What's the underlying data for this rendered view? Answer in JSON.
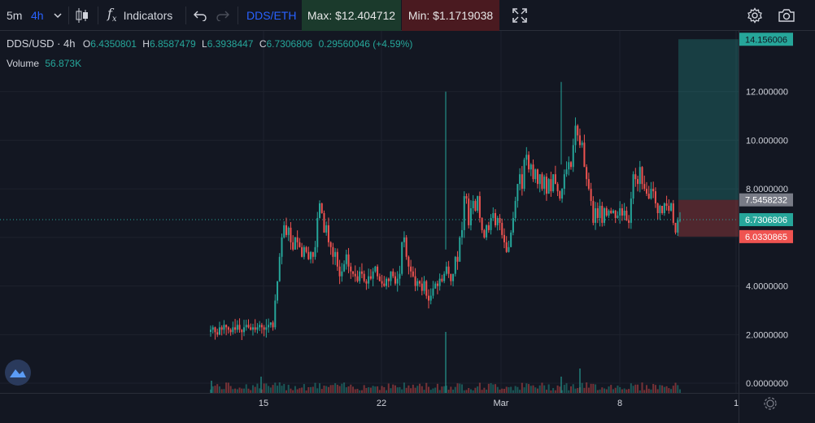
{
  "toolbar": {
    "interval_5m": "5m",
    "interval_4h": "4h",
    "indicators_label": "Indicators",
    "compare_symbol": "DDS/ETH",
    "max_label": "Max: $12.404712",
    "min_label": "Min: $1.1719038"
  },
  "legend": {
    "symbol": "DDS/USD · 4h",
    "o_label": "O",
    "o_value": "6.4350801",
    "h_label": "H",
    "h_value": "6.8587479",
    "l_label": "L",
    "l_value": "6.3938447",
    "c_label": "C",
    "c_value": "6.7306806",
    "change": "0.29560046 (+4.59%)",
    "volume_label": "Volume",
    "volume_value": "56.873K"
  },
  "colors": {
    "up": "#26a69a",
    "down": "#ef5350",
    "bg": "#131722",
    "grid": "#1e222d"
  },
  "chart_data": {
    "type": "candlestick",
    "ylim": [
      -0.4,
      14.5
    ],
    "y_ticks": [
      0,
      2,
      4,
      6,
      8,
      10,
      12
    ],
    "y_tick_labels": [
      "0.0000000",
      "2.0000000",
      "4.0000000",
      "6.0000000",
      "8.0000000",
      "10.000000",
      "12.000000"
    ],
    "x_ticks": [
      "15",
      "22",
      "Mar",
      "8",
      "1"
    ],
    "price_labels": {
      "take_profit": "14.156006",
      "entry": "7.5458232",
      "last": "6.7306806",
      "stop_loss": "6.0330865"
    },
    "levels": {
      "take_profit": 14.156006,
      "entry": 7.5458232,
      "last": 6.7306806,
      "stop_loss": 6.0330865
    },
    "close": [
      2.2,
      2.3,
      2.1,
      2.0,
      2.3,
      2.2,
      2.4,
      2.3,
      2.2,
      2.1,
      2.3,
      2.2,
      2.4,
      2.2,
      2.1,
      2.3,
      2.4,
      2.3,
      2.2,
      2.3,
      2.2,
      2.3,
      2.4,
      2.3,
      2.2,
      2.3,
      2.4,
      2.5,
      2.3,
      3.4,
      4.2,
      5.2,
      6.0,
      6.5,
      6.1,
      6.4,
      5.8,
      5.5,
      6.0,
      5.8,
      5.6,
      5.2,
      5.6,
      5.4,
      5.1,
      5.4,
      5.2,
      5.6,
      6.8,
      7.4,
      7.0,
      6.2,
      6.5,
      5.8,
      5.6,
      5.2,
      5.4,
      4.8,
      4.4,
      4.6,
      4.9,
      5.3,
      4.8,
      4.6,
      4.5,
      4.4,
      4.2,
      4.6,
      4.5,
      4.2,
      4.1,
      4.4,
      4.3,
      4.6,
      4.8,
      4.4,
      4.2,
      4.1,
      4.0,
      4.3,
      4.2,
      4.6,
      4.4,
      4.1,
      4.3,
      4.5,
      5.8,
      6.0,
      5.2,
      4.8,
      4.6,
      4.4,
      4.0,
      4.2,
      4.1,
      3.8,
      4.2,
      3.6,
      3.4,
      3.6,
      3.9,
      4.1,
      4.0,
      4.3,
      4.2,
      4.5,
      4.8,
      4.5,
      4.2,
      4.5,
      5.2,
      5.0,
      6.0,
      6.3,
      7.7,
      7.6,
      6.5,
      7.2,
      7.5,
      7.1,
      7.7,
      6.8,
      6.3,
      6.0,
      6.5,
      6.3,
      6.8,
      7.0,
      6.5,
      6.8,
      6.6,
      6.1,
      5.8,
      5.4,
      5.6,
      6.2,
      6.8,
      7.5,
      8.2,
      8.6,
      8.0,
      9.2,
      9.4,
      8.8,
      9.0,
      8.4,
      8.8,
      8.2,
      8.6,
      8.0,
      8.5,
      7.8,
      8.4,
      7.9,
      8.6,
      8.2,
      7.9,
      7.6,
      8.0,
      8.6,
      8.8,
      9.1,
      8.9,
      9.8,
      10.6,
      10.2,
      9.8,
      9.9,
      8.9,
      8.4,
      8.0,
      7.5,
      6.6,
      7.2,
      6.8,
      7.3,
      6.6,
      7.2,
      6.9,
      7.1,
      7.0,
      7.1,
      6.8,
      6.9,
      7.2,
      6.9,
      7.1,
      6.7,
      6.6,
      7.6,
      8.6,
      8.4,
      8.2,
      8.9,
      8.2,
      8.0,
      7.8,
      7.6,
      8.0,
      7.9,
      7.4,
      7.0,
      7.3,
      7.0,
      7.4,
      7.3,
      7.1,
      7.4,
      6.6,
      6.2,
      6.7,
      6.73
    ]
  }
}
